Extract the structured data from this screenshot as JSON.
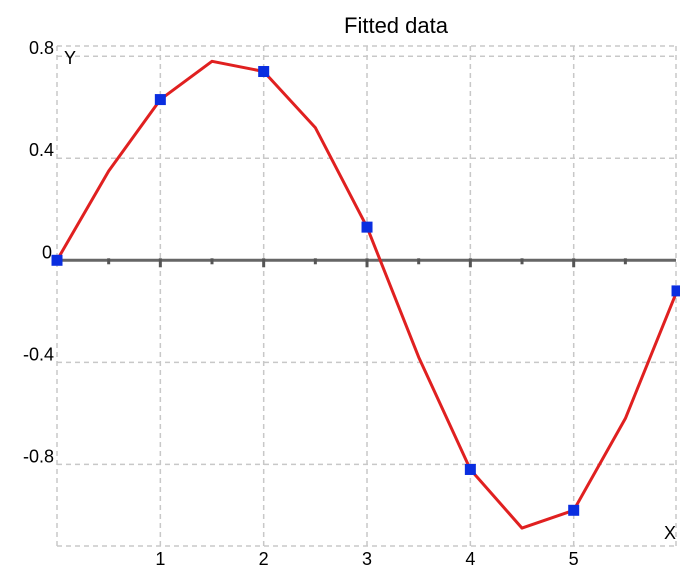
{
  "chart_data": {
    "type": "line",
    "title": "Fitted data",
    "xlabel": "X",
    "ylabel": "Y",
    "xlim": [
      0,
      5.99
    ],
    "ylim": [
      -1.12,
      0.84
    ],
    "x_ticks": [
      1,
      2,
      3,
      4,
      5
    ],
    "y_ticks": [
      0.8,
      0.4,
      0,
      -0.4,
      -0.8
    ],
    "x_tick_labels": [
      "1",
      "2",
      "3",
      "4",
      "5"
    ],
    "y_tick_labels": [
      "0.8",
      "0.4",
      "0",
      "-0.4",
      "-0.8"
    ],
    "grid": true,
    "series": [
      {
        "color": "#e02020",
        "x": [
          0,
          0.5,
          1,
          1.5,
          2,
          2.5,
          3,
          3.5,
          4,
          4.5,
          5,
          5.5,
          6
        ],
        "y": [
          0,
          0.35,
          0.63,
          0.78,
          0.74,
          0.52,
          0.13,
          -0.38,
          -0.82,
          -1.05,
          -0.98,
          -0.62,
          -0.12
        ]
      },
      {
        "color": "#0a2ee0",
        "marker": "square",
        "x": [
          0,
          1,
          2,
          3,
          4,
          5,
          6
        ],
        "y": [
          0,
          0.63,
          0.74,
          0.13,
          -0.82,
          -0.98,
          -0.12
        ]
      }
    ]
  }
}
